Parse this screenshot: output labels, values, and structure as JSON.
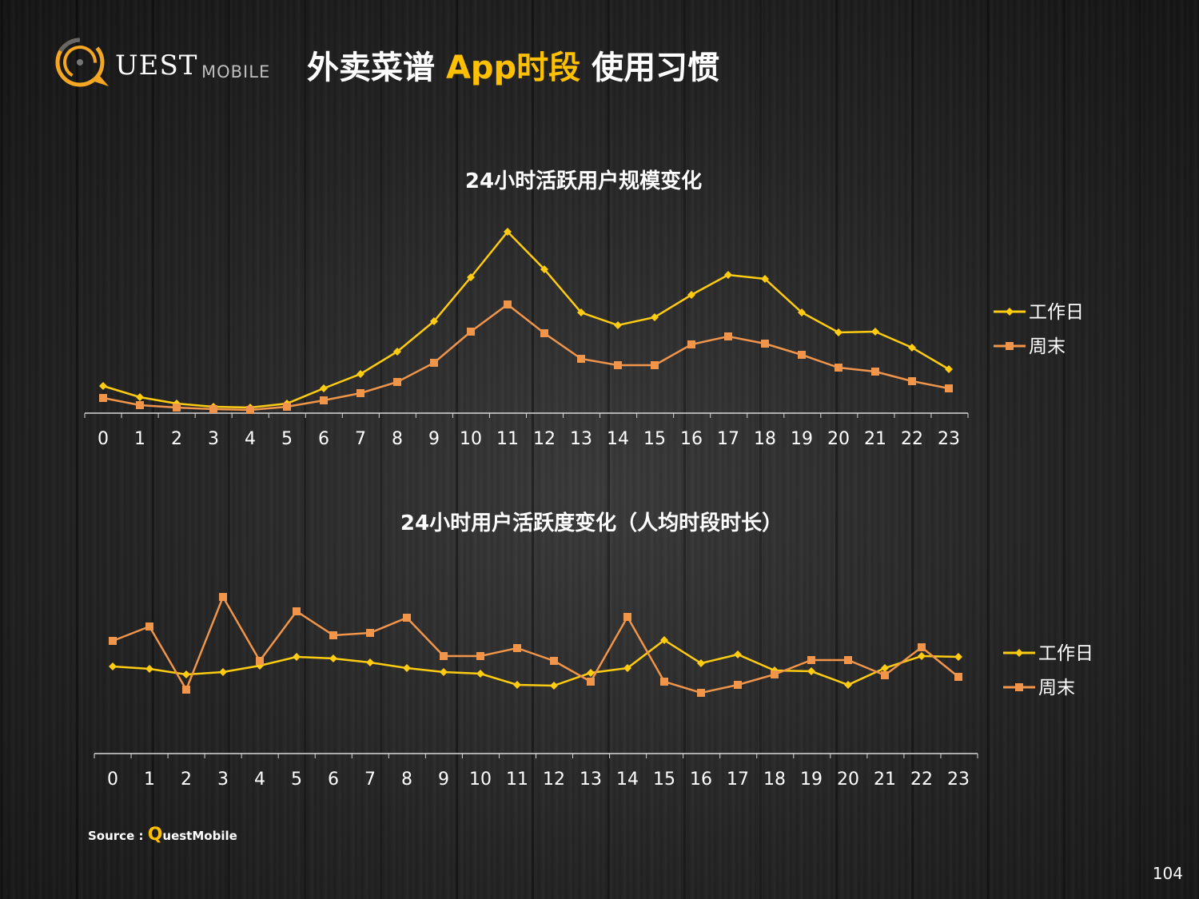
{
  "header": {
    "logo_text": "QUEST MOBILE",
    "title_part1": "外卖菜谱 ",
    "title_highlight": "App时段",
    "title_part2": " 使用习惯"
  },
  "colors": {
    "workday": "#ffcc11",
    "weekend": "#f0954a",
    "accent": "#ffc000"
  },
  "chart_data": [
    {
      "type": "line",
      "title": "24小时活跃用户规模变化",
      "categories": [
        "0",
        "1",
        "2",
        "3",
        "4",
        "5",
        "6",
        "7",
        "8",
        "9",
        "10",
        "11",
        "12",
        "13",
        "14",
        "15",
        "16",
        "17",
        "18",
        "19",
        "20",
        "21",
        "22",
        "23"
      ],
      "series": [
        {
          "name": "工作日",
          "marker": "diamond",
          "values": [
            34,
            20,
            12,
            8,
            7,
            12,
            31,
            49,
            77,
            115,
            170,
            227,
            180,
            126,
            110,
            120,
            148,
            173,
            168,
            126,
            101,
            102,
            82,
            55
          ]
        },
        {
          "name": "周末",
          "marker": "square",
          "values": [
            19,
            10,
            7,
            5,
            4,
            8,
            16,
            25,
            39,
            63,
            102,
            136,
            100,
            68,
            60,
            60,
            86,
            96,
            87,
            73,
            57,
            52,
            40,
            31
          ]
        }
      ],
      "legend": "right",
      "grid": false
    },
    {
      "type": "line",
      "title": "24小时用户活跃度变化（人均时段时长）",
      "categories": [
        "0",
        "1",
        "2",
        "3",
        "4",
        "5",
        "6",
        "7",
        "8",
        "9",
        "10",
        "11",
        "12",
        "13",
        "14",
        "15",
        "16",
        "17",
        "18",
        "19",
        "20",
        "21",
        "22",
        "23"
      ],
      "series": [
        {
          "name": "工作日",
          "marker": "diamond",
          "values": [
            109,
            106,
            99,
            102,
            110,
            121,
            119,
            114,
            107,
            102,
            100,
            86,
            85,
            101,
            107,
            142,
            113,
            124,
            104,
            103,
            86,
            107,
            122,
            121
          ]
        },
        {
          "name": "周末",
          "marker": "square",
          "values": [
            141,
            159,
            80,
            196,
            116,
            178,
            148,
            151,
            170,
            122,
            122,
            132,
            116,
            90,
            171,
            90,
            76,
            86,
            99,
            117,
            117,
            98,
            133,
            96
          ]
        }
      ],
      "legend": "right",
      "grid": false
    }
  ],
  "footer": {
    "source_label": "Source : ",
    "source_q": "Q",
    "source_name": "uestMobile",
    "page_number": "104"
  }
}
